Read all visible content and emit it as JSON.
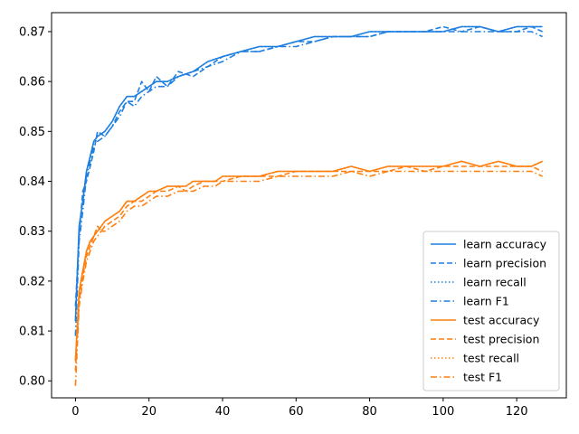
{
  "chart_data": {
    "type": "line",
    "title": "",
    "xlabel": "",
    "ylabel": "",
    "xlim": [
      -6.5,
      133.5
    ],
    "ylim": [
      0.7966,
      0.8738
    ],
    "xticks": [
      0,
      20,
      40,
      60,
      80,
      100,
      120
    ],
    "yticks": [
      0.8,
      0.81,
      0.82,
      0.83,
      0.84,
      0.85,
      0.86,
      0.87
    ],
    "xtick_labels": [
      "0",
      "20",
      "40",
      "60",
      "80",
      "100",
      "120"
    ],
    "ytick_labels": [
      "0.80",
      "0.81",
      "0.82",
      "0.83",
      "0.84",
      "0.85",
      "0.86",
      "0.87"
    ],
    "grid": false,
    "legend_position": "lower-right",
    "series": [
      {
        "name": "learn accuracy",
        "color": "#1f7fe0",
        "dash": "solid",
        "x": [
          0,
          1,
          2,
          3,
          4,
          5,
          6,
          8,
          10,
          12,
          14,
          16,
          18,
          20,
          22,
          25,
          28,
          32,
          36,
          40,
          45,
          50,
          55,
          60,
          65,
          70,
          75,
          80,
          85,
          90,
          95,
          100,
          105,
          110,
          115,
          120,
          124,
          127
        ],
        "values": [
          0.812,
          0.831,
          0.836,
          0.842,
          0.845,
          0.848,
          0.849,
          0.85,
          0.852,
          0.855,
          0.857,
          0.857,
          0.858,
          0.859,
          0.86,
          0.86,
          0.861,
          0.862,
          0.864,
          0.865,
          0.866,
          0.867,
          0.867,
          0.868,
          0.869,
          0.869,
          0.869,
          0.87,
          0.87,
          0.87,
          0.87,
          0.87,
          0.871,
          0.871,
          0.87,
          0.871,
          0.871,
          0.871
        ]
      },
      {
        "name": "learn precision",
        "color": "#1f7fe0",
        "dash": "dashed",
        "x": [
          0,
          1,
          2,
          3,
          4,
          5,
          6,
          8,
          10,
          12,
          14,
          16,
          18,
          20,
          22,
          25,
          28,
          32,
          36,
          40,
          45,
          50,
          55,
          60,
          65,
          70,
          75,
          80,
          85,
          90,
          95,
          100,
          105,
          110,
          115,
          120,
          124,
          127
        ],
        "values": [
          0.815,
          0.829,
          0.838,
          0.84,
          0.843,
          0.846,
          0.85,
          0.849,
          0.851,
          0.854,
          0.856,
          0.856,
          0.86,
          0.858,
          0.861,
          0.859,
          0.862,
          0.861,
          0.863,
          0.865,
          0.866,
          0.866,
          0.867,
          0.868,
          0.868,
          0.869,
          0.869,
          0.869,
          0.87,
          0.87,
          0.87,
          0.871,
          0.87,
          0.871,
          0.87,
          0.87,
          0.871,
          0.87
        ]
      },
      {
        "name": "learn recall",
        "color": "#1f7fe0",
        "dash": "dotted",
        "x": [
          0,
          1,
          2,
          3,
          4,
          5,
          6,
          8,
          10,
          12,
          14,
          16,
          18,
          20,
          22,
          25,
          28,
          32,
          36,
          40,
          45,
          50,
          55,
          60,
          65,
          70,
          75,
          80,
          85,
          90,
          95,
          100,
          105,
          110,
          115,
          120,
          124,
          127
        ],
        "values": [
          0.812,
          0.831,
          0.836,
          0.842,
          0.845,
          0.848,
          0.849,
          0.85,
          0.852,
          0.855,
          0.857,
          0.857,
          0.858,
          0.859,
          0.86,
          0.86,
          0.861,
          0.862,
          0.864,
          0.865,
          0.866,
          0.867,
          0.867,
          0.868,
          0.869,
          0.869,
          0.869,
          0.87,
          0.87,
          0.87,
          0.87,
          0.87,
          0.871,
          0.871,
          0.87,
          0.871,
          0.871,
          0.871
        ]
      },
      {
        "name": "learn F1",
        "color": "#1f7fe0",
        "dash": "dashdot",
        "x": [
          0,
          1,
          2,
          3,
          4,
          5,
          6,
          8,
          10,
          12,
          14,
          16,
          18,
          20,
          22,
          25,
          28,
          32,
          36,
          40,
          45,
          50,
          55,
          60,
          65,
          70,
          75,
          80,
          85,
          90,
          95,
          100,
          105,
          110,
          115,
          120,
          124,
          127
        ],
        "values": [
          0.809,
          0.828,
          0.834,
          0.841,
          0.844,
          0.847,
          0.848,
          0.849,
          0.851,
          0.853,
          0.856,
          0.855,
          0.857,
          0.858,
          0.859,
          0.859,
          0.861,
          0.862,
          0.863,
          0.864,
          0.866,
          0.866,
          0.867,
          0.867,
          0.868,
          0.869,
          0.869,
          0.869,
          0.87,
          0.87,
          0.87,
          0.87,
          0.87,
          0.87,
          0.87,
          0.87,
          0.87,
          0.869
        ]
      },
      {
        "name": "test accuracy",
        "color": "#ff7f0e",
        "dash": "solid",
        "x": [
          0,
          1,
          2,
          3,
          4,
          5,
          6,
          7,
          8,
          10,
          12,
          14,
          16,
          18,
          20,
          22,
          25,
          28,
          30,
          32,
          35,
          38,
          40,
          45,
          50,
          55,
          60,
          65,
          70,
          75,
          80,
          85,
          90,
          95,
          100,
          105,
          110,
          115,
          120,
          124,
          127
        ],
        "values": [
          0.804,
          0.818,
          0.822,
          0.826,
          0.828,
          0.829,
          0.83,
          0.831,
          0.832,
          0.833,
          0.834,
          0.836,
          0.836,
          0.837,
          0.838,
          0.838,
          0.839,
          0.839,
          0.839,
          0.84,
          0.84,
          0.84,
          0.841,
          0.841,
          0.841,
          0.842,
          0.842,
          0.842,
          0.842,
          0.843,
          0.842,
          0.843,
          0.843,
          0.843,
          0.843,
          0.844,
          0.843,
          0.844,
          0.843,
          0.843,
          0.844
        ]
      },
      {
        "name": "test precision",
        "color": "#ff7f0e",
        "dash": "dashed",
        "x": [
          0,
          1,
          2,
          3,
          4,
          5,
          6,
          7,
          8,
          10,
          12,
          14,
          16,
          18,
          20,
          22,
          25,
          28,
          30,
          32,
          35,
          38,
          40,
          45,
          50,
          55,
          60,
          65,
          70,
          75,
          80,
          85,
          90,
          95,
          100,
          105,
          110,
          115,
          120,
          124,
          127
        ],
        "values": [
          0.802,
          0.816,
          0.821,
          0.825,
          0.827,
          0.829,
          0.831,
          0.83,
          0.831,
          0.832,
          0.833,
          0.835,
          0.836,
          0.836,
          0.837,
          0.838,
          0.838,
          0.839,
          0.838,
          0.839,
          0.84,
          0.84,
          0.84,
          0.841,
          0.841,
          0.841,
          0.842,
          0.842,
          0.842,
          0.842,
          0.842,
          0.842,
          0.843,
          0.842,
          0.843,
          0.843,
          0.843,
          0.843,
          0.843,
          0.843,
          0.842
        ]
      },
      {
        "name": "test recall",
        "color": "#ff7f0e",
        "dash": "dotted",
        "x": [
          0,
          1,
          2,
          3,
          4,
          5,
          6,
          7,
          8,
          10,
          12,
          14,
          16,
          18,
          20,
          22,
          25,
          28,
          30,
          32,
          35,
          38,
          40,
          45,
          50,
          55,
          60,
          65,
          70,
          75,
          80,
          85,
          90,
          95,
          100,
          105,
          110,
          115,
          120,
          124,
          127
        ],
        "values": [
          0.804,
          0.818,
          0.822,
          0.826,
          0.828,
          0.829,
          0.83,
          0.831,
          0.832,
          0.833,
          0.834,
          0.836,
          0.836,
          0.837,
          0.838,
          0.838,
          0.839,
          0.839,
          0.839,
          0.84,
          0.84,
          0.84,
          0.841,
          0.841,
          0.841,
          0.842,
          0.842,
          0.842,
          0.842,
          0.843,
          0.842,
          0.843,
          0.843,
          0.843,
          0.843,
          0.844,
          0.843,
          0.844,
          0.843,
          0.843,
          0.844
        ]
      },
      {
        "name": "test F1",
        "color": "#ff7f0e",
        "dash": "dashdot",
        "x": [
          0,
          1,
          2,
          3,
          4,
          5,
          6,
          7,
          8,
          10,
          12,
          14,
          16,
          18,
          20,
          22,
          25,
          28,
          30,
          32,
          35,
          38,
          40,
          45,
          50,
          55,
          60,
          65,
          70,
          75,
          80,
          85,
          90,
          95,
          100,
          105,
          110,
          115,
          120,
          124,
          127
        ],
        "values": [
          0.799,
          0.815,
          0.82,
          0.824,
          0.826,
          0.828,
          0.829,
          0.83,
          0.83,
          0.831,
          0.832,
          0.834,
          0.835,
          0.835,
          0.836,
          0.837,
          0.837,
          0.838,
          0.838,
          0.838,
          0.839,
          0.839,
          0.84,
          0.84,
          0.84,
          0.841,
          0.841,
          0.841,
          0.841,
          0.842,
          0.841,
          0.842,
          0.842,
          0.842,
          0.842,
          0.842,
          0.842,
          0.842,
          0.842,
          0.842,
          0.841
        ]
      }
    ]
  }
}
